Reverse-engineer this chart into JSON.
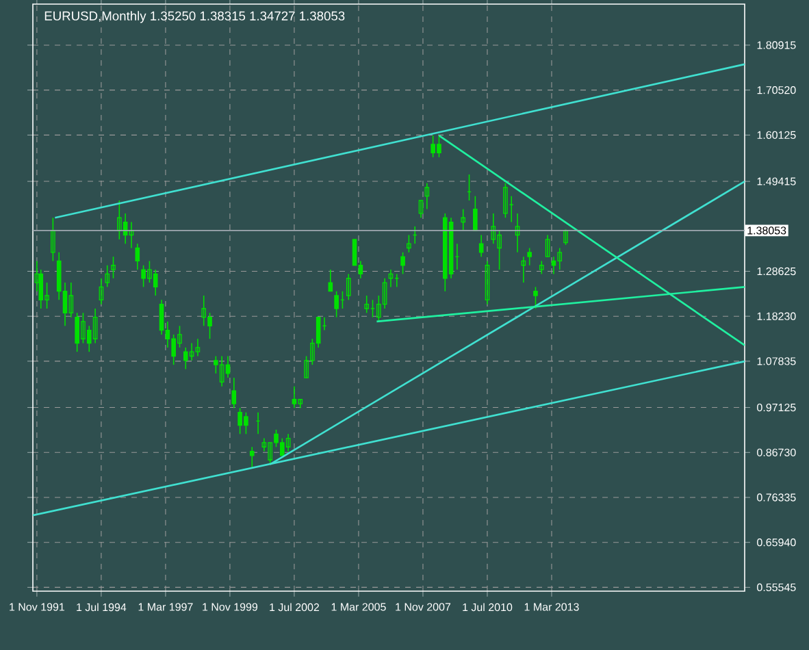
{
  "chart_data": {
    "type": "candlestick",
    "title": "EURUSD,Monthly  1.35250 1.38315 1.34727 1.38053",
    "x": [
      "1991-11",
      "1992-01",
      "1992-04",
      "1992-07",
      "1992-10",
      "1993-01",
      "1993-04",
      "1993-07",
      "1993-10",
      "1994-01",
      "1994-04",
      "1994-07",
      "1994-10",
      "1995-01",
      "1995-04",
      "1995-07",
      "1995-10",
      "1996-01",
      "1996-04",
      "1996-07",
      "1996-10",
      "1997-01",
      "1997-04",
      "1997-07",
      "1997-10",
      "1998-01",
      "1998-04",
      "1998-07",
      "1998-10",
      "1999-01",
      "1999-04",
      "1999-07",
      "1999-10",
      "2000-01",
      "2000-04",
      "2000-07",
      "2000-10",
      "2001-01",
      "2001-04",
      "2001-07",
      "2001-10",
      "2002-01",
      "2002-04",
      "2002-07",
      "2002-10",
      "2003-01",
      "2003-04",
      "2003-07",
      "2003-10",
      "2004-01",
      "2004-04",
      "2004-07",
      "2004-10",
      "2005-01",
      "2005-04",
      "2005-07",
      "2005-10",
      "2006-01",
      "2006-04",
      "2006-07",
      "2006-10",
      "2007-01",
      "2007-04",
      "2007-07",
      "2007-10",
      "2008-01",
      "2008-04",
      "2008-07",
      "2008-10",
      "2009-01",
      "2009-04",
      "2009-07",
      "2009-10",
      "2010-01",
      "2010-04",
      "2010-07",
      "2010-10",
      "2011-01",
      "2011-04",
      "2011-07",
      "2011-10",
      "2012-01",
      "2012-04",
      "2012-07",
      "2012-10",
      "2013-01",
      "2013-04",
      "2013-07",
      "2013-10"
    ],
    "ohlc": [
      [
        1.26,
        1.31,
        1.24,
        1.28
      ],
      [
        1.28,
        1.29,
        1.2,
        1.22
      ],
      [
        1.22,
        1.26,
        1.2,
        1.23
      ],
      [
        1.33,
        1.41,
        1.31,
        1.38
      ],
      [
        1.31,
        1.33,
        1.22,
        1.24
      ],
      [
        1.24,
        1.26,
        1.16,
        1.19
      ],
      [
        1.19,
        1.26,
        1.18,
        1.23
      ],
      [
        1.18,
        1.19,
        1.1,
        1.12
      ],
      [
        1.13,
        1.19,
        1.12,
        1.17
      ],
      [
        1.15,
        1.16,
        1.1,
        1.12
      ],
      [
        1.13,
        1.2,
        1.12,
        1.18
      ],
      [
        1.22,
        1.27,
        1.21,
        1.25
      ],
      [
        1.26,
        1.3,
        1.25,
        1.28
      ],
      [
        1.29,
        1.32,
        1.27,
        1.3
      ],
      [
        1.38,
        1.45,
        1.36,
        1.41
      ],
      [
        1.4,
        1.42,
        1.35,
        1.37
      ],
      [
        1.37,
        1.4,
        1.34,
        1.38
      ],
      [
        1.34,
        1.35,
        1.29,
        1.31
      ],
      [
        1.29,
        1.3,
        1.25,
        1.27
      ],
      [
        1.27,
        1.31,
        1.26,
        1.29
      ],
      [
        1.28,
        1.29,
        1.23,
        1.25
      ],
      [
        1.21,
        1.22,
        1.14,
        1.15
      ],
      [
        1.15,
        1.17,
        1.11,
        1.13
      ],
      [
        1.13,
        1.14,
        1.07,
        1.09
      ],
      [
        1.12,
        1.16,
        1.11,
        1.14
      ],
      [
        1.1,
        1.11,
        1.06,
        1.08
      ],
      [
        1.09,
        1.12,
        1.08,
        1.1
      ],
      [
        1.1,
        1.13,
        1.09,
        1.11
      ],
      [
        1.18,
        1.23,
        1.16,
        1.2
      ],
      [
        1.18,
        1.19,
        1.13,
        1.16
      ],
      [
        1.08,
        1.09,
        1.05,
        1.07
      ],
      [
        1.03,
        1.09,
        1.02,
        1.07
      ],
      [
        1.07,
        1.09,
        1.04,
        1.05
      ],
      [
        1.01,
        1.04,
        0.97,
        0.98
      ],
      [
        0.96,
        0.97,
        0.91,
        0.93
      ],
      [
        0.95,
        0.96,
        0.91,
        0.93
      ],
      [
        0.87,
        0.88,
        0.83,
        0.86
      ],
      [
        0.94,
        0.96,
        0.91,
        0.94
      ],
      [
        0.88,
        0.9,
        0.87,
        0.89
      ],
      [
        0.85,
        0.89,
        0.84,
        0.89
      ],
      [
        0.91,
        0.92,
        0.88,
        0.89
      ],
      [
        0.89,
        0.9,
        0.86,
        0.86
      ],
      [
        0.88,
        0.91,
        0.87,
        0.9
      ],
      [
        0.99,
        1.02,
        0.97,
        0.98
      ],
      [
        0.98,
        0.99,
        0.97,
        0.99
      ],
      [
        1.04,
        1.09,
        1.04,
        1.08
      ],
      [
        1.08,
        1.13,
        1.07,
        1.12
      ],
      [
        1.18,
        1.18,
        1.11,
        1.12
      ],
      [
        1.16,
        1.18,
        1.15,
        1.16
      ],
      [
        1.26,
        1.29,
        1.24,
        1.24
      ],
      [
        1.23,
        1.24,
        1.18,
        1.2
      ],
      [
        1.22,
        1.24,
        1.2,
        1.22
      ],
      [
        1.23,
        1.28,
        1.22,
        1.27
      ],
      [
        1.36,
        1.36,
        1.3,
        1.3
      ],
      [
        1.3,
        1.31,
        1.27,
        1.28
      ],
      [
        1.2,
        1.23,
        1.19,
        1.21
      ],
      [
        1.2,
        1.22,
        1.18,
        1.2
      ],
      [
        1.18,
        1.23,
        1.17,
        1.21
      ],
      [
        1.21,
        1.27,
        1.2,
        1.26
      ],
      [
        1.27,
        1.29,
        1.25,
        1.28
      ],
      [
        1.27,
        1.28,
        1.25,
        1.27
      ],
      [
        1.32,
        1.33,
        1.28,
        1.3
      ],
      [
        1.34,
        1.37,
        1.33,
        1.35
      ],
      [
        1.37,
        1.39,
        1.35,
        1.37
      ],
      [
        1.42,
        1.45,
        1.41,
        1.45
      ],
      [
        1.46,
        1.49,
        1.43,
        1.48
      ],
      [
        1.58,
        1.6,
        1.55,
        1.56
      ],
      [
        1.58,
        1.6,
        1.55,
        1.56
      ],
      [
        1.41,
        1.42,
        1.24,
        1.27
      ],
      [
        1.4,
        1.41,
        1.27,
        1.28
      ],
      [
        1.32,
        1.35,
        1.29,
        1.32
      ],
      [
        1.4,
        1.43,
        1.38,
        1.41
      ],
      [
        1.47,
        1.51,
        1.45,
        1.47
      ],
      [
        1.43,
        1.46,
        1.38,
        1.38
      ],
      [
        1.35,
        1.37,
        1.32,
        1.33
      ],
      [
        1.22,
        1.31,
        1.21,
        1.3
      ],
      [
        1.36,
        1.42,
        1.35,
        1.39
      ],
      [
        1.34,
        1.38,
        1.29,
        1.37
      ],
      [
        1.42,
        1.49,
        1.41,
        1.48
      ],
      [
        1.44,
        1.46,
        1.4,
        1.44
      ],
      [
        1.37,
        1.42,
        1.33,
        1.39
      ],
      [
        1.3,
        1.32,
        1.26,
        1.31
      ],
      [
        1.33,
        1.34,
        1.3,
        1.32
      ],
      [
        1.24,
        1.25,
        1.2,
        1.23
      ],
      [
        1.29,
        1.31,
        1.28,
        1.3
      ],
      [
        1.32,
        1.37,
        1.32,
        1.36
      ],
      [
        1.31,
        1.32,
        1.28,
        1.3
      ],
      [
        1.31,
        1.34,
        1.29,
        1.33
      ],
      [
        1.3525,
        1.38315,
        1.34727,
        1.38053
      ]
    ],
    "color": "#00e000",
    "series": [
      {
        "type": "line",
        "color": "#40e0d0",
        "x": [
          "1992-08",
          "2021-03"
        ],
        "values": [
          1.41,
          1.765
        ]
      },
      {
        "type": "line",
        "color": "#40e0d0",
        "x": [
          "1991-09",
          "2021-03"
        ],
        "values": [
          0.722,
          1.078
        ]
      },
      {
        "type": "line",
        "color": "#40e0d0",
        "x": [
          "2001-07",
          "2021-03"
        ],
        "values": [
          0.84,
          1.494
        ]
      },
      {
        "type": "line",
        "color": "#20f0a0",
        "x": [
          "2008-07",
          "2021-03"
        ],
        "values": [
          1.6,
          1.115
        ]
      },
      {
        "type": "line",
        "color": "#20f0a0",
        "x": [
          "2005-12",
          "2021-03"
        ],
        "values": [
          1.17,
          1.25
        ]
      }
    ],
    "ref_lines": [
      {
        "axis": "y",
        "value": 1.38053,
        "label": "1.38053",
        "color": "#a0a8b0"
      }
    ],
    "xlim": [
      "1991-09",
      "2021-03"
    ],
    "xticks": [
      {
        "value": "1991-11-01",
        "label": "1 Nov 1991"
      },
      {
        "value": "1994-07-01",
        "label": "1 Jul 1994"
      },
      {
        "value": "1997-03-01",
        "label": "1 Mar 1997"
      },
      {
        "value": "1999-11-01",
        "label": "1 Nov 1999"
      },
      {
        "value": "2002-07-01",
        "label": "1 Jul 2002"
      },
      {
        "value": "2005-03-01",
        "label": "1 Mar 2005"
      },
      {
        "value": "2007-11-01",
        "label": "1 Nov 2007"
      },
      {
        "value": "2010-07-01",
        "label": "1 Jul 2010"
      },
      {
        "value": "2013-03-01",
        "label": "1 Mar 2013"
      }
    ],
    "ylim": [
      0.5466,
      1.904
    ],
    "yticks": [
      {
        "value": 0.55545,
        "label": "0.55545"
      },
      {
        "value": 0.6594,
        "label": "0.65940"
      },
      {
        "value": 0.76335,
        "label": "0.76335"
      },
      {
        "value": 0.8673,
        "label": "0.86730"
      },
      {
        "value": 0.97125,
        "label": "0.97125"
      },
      {
        "value": 1.07835,
        "label": "1.07835"
      },
      {
        "value": 1.1823,
        "label": "1.18230"
      },
      {
        "value": 1.28625,
        "label": "1.28625"
      },
      {
        "value": 1.49415,
        "label": "1.49415"
      },
      {
        "value": 1.60125,
        "label": "1.60125"
      },
      {
        "value": 1.7052,
        "label": "1.70520"
      },
      {
        "value": 1.80915,
        "label": "1.80915"
      }
    ],
    "grid": true
  }
}
